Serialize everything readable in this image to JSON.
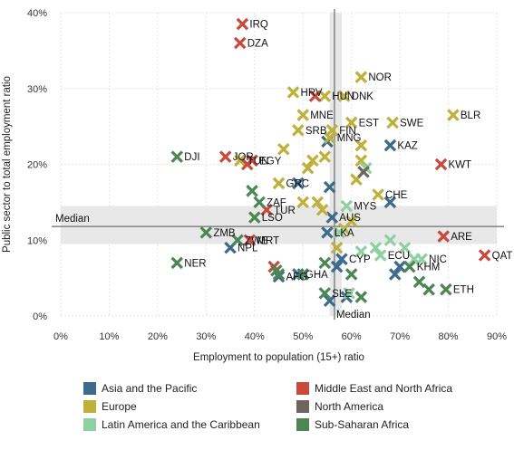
{
  "chart_data": {
    "type": "scatter",
    "xlabel": "Employment to population (15+) ratio",
    "ylabel": "Public sector to total employment ratio",
    "xlim": [
      0,
      90
    ],
    "ylim": [
      0,
      40
    ],
    "x_ticks": [
      "0%",
      "10%",
      "20%",
      "30%",
      "40%",
      "50%",
      "60%",
      "70%",
      "80%",
      "90%"
    ],
    "y_ticks": [
      "0%",
      "10%",
      "20%",
      "30%",
      "40%"
    ],
    "median": {
      "x": 56.5,
      "y": 11.8,
      "x_label": "Median",
      "y_label": "Median"
    },
    "bands": {
      "x": [
        55.5,
        58
      ],
      "y": [
        9.5,
        14.5
      ]
    },
    "series": [
      {
        "name": "Asia and the Pacific",
        "color": "#3d6b8c",
        "points": [
          {
            "x": 55,
            "y": 11,
            "label": "LKA"
          },
          {
            "x": 35,
            "y": 9,
            "label": "NPL"
          },
          {
            "x": 45,
            "y": 5.2,
            "label": "AFG"
          },
          {
            "x": 56,
            "y": 13,
            "label": "AUS"
          },
          {
            "x": 58,
            "y": 7.5,
            "label": "CYP"
          },
          {
            "x": 57,
            "y": 6.5,
            "label": ""
          },
          {
            "x": 55.5,
            "y": 17,
            "label": ""
          },
          {
            "x": 68,
            "y": 22.5,
            "label": "KAZ"
          },
          {
            "x": 68,
            "y": 15,
            "label": ""
          },
          {
            "x": 55,
            "y": 23,
            "label": ""
          },
          {
            "x": 49,
            "y": 17.5,
            "label": ""
          },
          {
            "x": 70,
            "y": 6.5,
            "label": ""
          },
          {
            "x": 69,
            "y": 5.5,
            "label": ""
          },
          {
            "x": 59,
            "y": 2.5,
            "label": ""
          },
          {
            "x": 55.5,
            "y": 2,
            "label": ""
          },
          {
            "x": 49,
            "y": 5.5,
            "label": "GHA"
          }
        ]
      },
      {
        "name": "Europe",
        "color": "#bdb13c",
        "points": [
          {
            "x": 62,
            "y": 31.5,
            "label": "NOR"
          },
          {
            "x": 54.5,
            "y": 29,
            "label": "HUN"
          },
          {
            "x": 58.5,
            "y": 29,
            "label": "DNK"
          },
          {
            "x": 48,
            "y": 29.5,
            "label": "HRV"
          },
          {
            "x": 50,
            "y": 26.5,
            "label": "MNE"
          },
          {
            "x": 49,
            "y": 24.5,
            "label": "SRB"
          },
          {
            "x": 56,
            "y": 24.5,
            "label": "FIN"
          },
          {
            "x": 60,
            "y": 25.5,
            "label": "EST"
          },
          {
            "x": 68.5,
            "y": 25.5,
            "label": "SWE"
          },
          {
            "x": 81,
            "y": 26.5,
            "label": "BLR"
          },
          {
            "x": 55.5,
            "y": 23.5,
            "label": "MNG"
          },
          {
            "x": 37,
            "y": 20.5,
            "label": "TUN"
          },
          {
            "x": 46,
            "y": 22,
            "label": ""
          },
          {
            "x": 45,
            "y": 17.5,
            "label": "GRC"
          },
          {
            "x": 51,
            "y": 19.5,
            "label": ""
          },
          {
            "x": 52,
            "y": 20.5,
            "label": ""
          },
          {
            "x": 54.5,
            "y": 21,
            "label": ""
          },
          {
            "x": 53,
            "y": 15,
            "label": ""
          },
          {
            "x": 54,
            "y": 14,
            "label": ""
          },
          {
            "x": 50,
            "y": 15,
            "label": ""
          },
          {
            "x": 62,
            "y": 22.5,
            "label": ""
          },
          {
            "x": 62,
            "y": 20.5,
            "label": ""
          },
          {
            "x": 61,
            "y": 18,
            "label": ""
          },
          {
            "x": 65.5,
            "y": 16,
            "label": "CHE"
          },
          {
            "x": 57,
            "y": 9,
            "label": ""
          },
          {
            "x": 60,
            "y": 12.5,
            "label": ""
          },
          {
            "x": 58.5,
            "y": 11.5,
            "label": ""
          }
        ]
      },
      {
        "name": "Latin America and the Caribbean",
        "color": "#8fd0a0",
        "points": [
          {
            "x": 59,
            "y": 14.5,
            "label": "MYS"
          },
          {
            "x": 57.5,
            "y": 11,
            "label": ""
          },
          {
            "x": 63,
            "y": 19.5,
            "label": ""
          },
          {
            "x": 65,
            "y": 9,
            "label": ""
          },
          {
            "x": 68,
            "y": 10,
            "label": ""
          },
          {
            "x": 66,
            "y": 8,
            "label": "ECU"
          },
          {
            "x": 71,
            "y": 9,
            "label": ""
          },
          {
            "x": 74.5,
            "y": 7.5,
            "label": "NIC"
          },
          {
            "x": 73,
            "y": 7.5,
            "label": ""
          },
          {
            "x": 62,
            "y": 8.5,
            "label": ""
          },
          {
            "x": 59.5,
            "y": 3,
            "label": ""
          }
        ]
      },
      {
        "name": "Middle East and North Africa",
        "color": "#c84a3c",
        "points": [
          {
            "x": 37.5,
            "y": 38.5,
            "label": "IRQ"
          },
          {
            "x": 37,
            "y": 36,
            "label": "DZA"
          },
          {
            "x": 34,
            "y": 21,
            "label": "JOR"
          },
          {
            "x": 39.5,
            "y": 20.5,
            "label": "EGY"
          },
          {
            "x": 38.5,
            "y": 20,
            "label": ""
          },
          {
            "x": 52.5,
            "y": 29,
            "label": ""
          },
          {
            "x": 78.5,
            "y": 20,
            "label": "KWT"
          },
          {
            "x": 79,
            "y": 10.5,
            "label": "ARE"
          },
          {
            "x": 87.5,
            "y": 8,
            "label": "QAT"
          },
          {
            "x": 42.5,
            "y": 14,
            "label": "TUR"
          },
          {
            "x": 39,
            "y": 10,
            "label": "MRT"
          },
          {
            "x": 44,
            "y": 6.5,
            "label": ""
          }
        ]
      },
      {
        "name": "North America",
        "color": "#6e665e",
        "points": [
          {
            "x": 62.5,
            "y": 19,
            "label": ""
          }
        ]
      },
      {
        "name": "Sub-Saharan Africa",
        "color": "#4d8555",
        "points": [
          {
            "x": 24,
            "y": 21,
            "label": "DJI"
          },
          {
            "x": 24,
            "y": 7,
            "label": "NER"
          },
          {
            "x": 30,
            "y": 11,
            "label": "ZMB"
          },
          {
            "x": 36.5,
            "y": 10,
            "label": "ZWE"
          },
          {
            "x": 41,
            "y": 15,
            "label": "ZAF"
          },
          {
            "x": 40,
            "y": 13,
            "label": "LSO"
          },
          {
            "x": 39.5,
            "y": 16.5,
            "label": ""
          },
          {
            "x": 44.5,
            "y": 6,
            "label": ""
          },
          {
            "x": 45,
            "y": 5.5,
            "label": ""
          },
          {
            "x": 50,
            "y": 5.5,
            "label": ""
          },
          {
            "x": 54.5,
            "y": 3,
            "label": "SLE"
          },
          {
            "x": 62,
            "y": 2.5,
            "label": ""
          },
          {
            "x": 72,
            "y": 6.5,
            "label": "KHM"
          },
          {
            "x": 74,
            "y": 4.5,
            "label": ""
          },
          {
            "x": 76,
            "y": 3.5,
            "label": ""
          },
          {
            "x": 79.5,
            "y": 3.5,
            "label": "ETH"
          },
          {
            "x": 54.5,
            "y": 7,
            "label": ""
          },
          {
            "x": 60,
            "y": 5.5,
            "label": ""
          }
        ]
      }
    ]
  }
}
